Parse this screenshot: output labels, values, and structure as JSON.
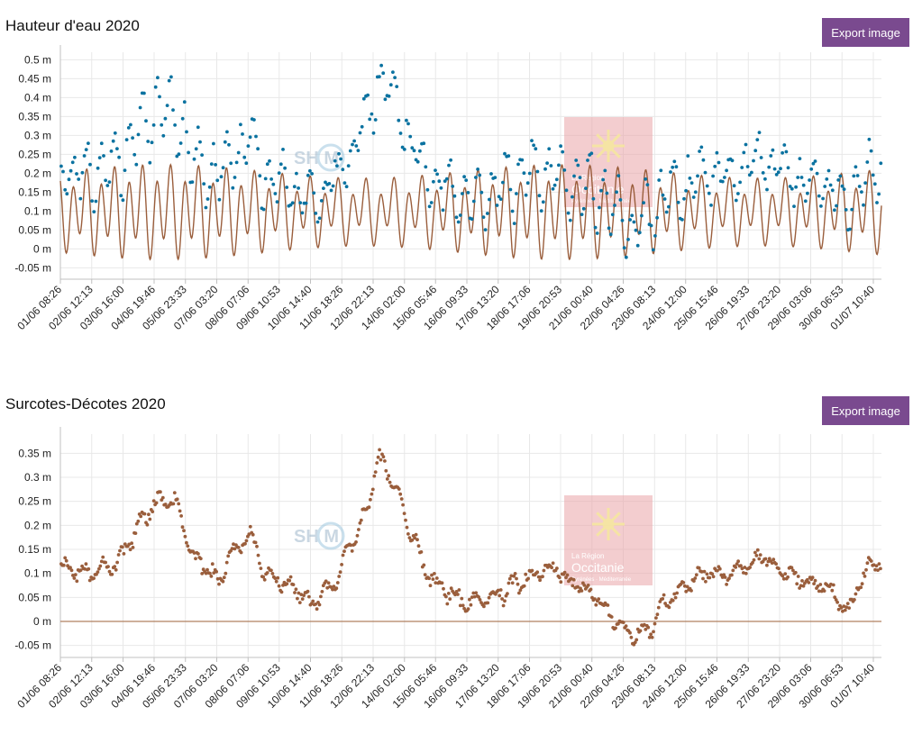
{
  "colors": {
    "button_bg": "#7a4a8f",
    "series_blue": "#0a72a0",
    "series_brown": "#9a5e3c",
    "grid": "#e8e8e8",
    "axis": "#c0c0c0",
    "zero_line": "#b08060",
    "watermark_box": "#e9a4a8",
    "watermark_icon": "#f6e7a0"
  },
  "export_label": "Export image",
  "watermarks": {
    "shom_text": "SH   M",
    "region_line1": "La Région",
    "region_line2": "Occitanie",
    "region_line3": "Pyrénées · Méditerranée"
  },
  "chart_data": [
    {
      "type": "scatter",
      "title": "Hauteur d'eau 2020",
      "yunit": "m",
      "ylim": [
        -0.08,
        0.52
      ],
      "yticks": [
        -0.05,
        0,
        0.05,
        0.1,
        0.15,
        0.2,
        0.25,
        0.3,
        0.35,
        0.4,
        0.45,
        0.5
      ],
      "ytick_labels": [
        "-0.05 m",
        "0 m",
        "0.05 m",
        "0.1 m",
        "0.15 m",
        "0.2 m",
        "0.25 m",
        "0.3 m",
        "0.35 m",
        "0.4 m",
        "0.45 m",
        "0.5 m"
      ],
      "x_range_days": [
        0,
        30.4
      ],
      "xticks": [
        0,
        1.16,
        2.32,
        3.47,
        4.63,
        5.79,
        6.95,
        8.1,
        9.26,
        10.42,
        11.58,
        12.74,
        13.89,
        15.05,
        16.21,
        17.37,
        18.52,
        19.68,
        20.84,
        22.0,
        23.15,
        24.31,
        25.47,
        26.63,
        27.78,
        28.94,
        30.1
      ],
      "xtick_labels": [
        "01/06 08:26",
        "02/06 12:13",
        "03/06 16:00",
        "04/06 19:46",
        "05/06 23:33",
        "07/06 03:20",
        "08/06 07:06",
        "09/06 10:53",
        "10/06 14:40",
        "11/06 18:26",
        "12/06 22:13",
        "14/06 02:00",
        "15/06 05:46",
        "16/06 09:33",
        "17/06 13:20",
        "18/06 17:06",
        "19/06 20:53",
        "21/06 00:40",
        "22/06 04:26",
        "23/06 08:13",
        "24/06 12:00",
        "25/06 15:46",
        "26/06 19:33",
        "27/06 23:20",
        "29/06 03:06",
        "30/06 06:53",
        "01/07 10:40"
      ],
      "grid": true,
      "series": [
        {
          "kind": "points",
          "color": "#0a72a0",
          "surge_anchors_x": [
            0,
            1,
            2,
            2.6,
            3.1,
            3.6,
            4.2,
            5,
            5.8,
            6.5,
            7,
            7.7,
            8.4,
            9.3,
            10,
            10.8,
            11.3,
            11.8,
            12.4,
            13,
            13.6,
            14.3,
            15,
            16,
            17,
            17.6,
            18.2,
            19,
            19.8,
            20.6,
            21.2,
            21.8,
            22.3,
            23,
            23.8,
            24.8,
            25.5,
            26,
            26.6,
            27.2,
            28,
            28.6,
            29.1,
            29.6,
            30,
            30.4
          ],
          "surge_anchors_y": [
            0.11,
            0.1,
            0.12,
            0.17,
            0.22,
            0.25,
            0.25,
            0.13,
            0.09,
            0.15,
            0.18,
            0.09,
            0.08,
            0.04,
            0.07,
            0.16,
            0.23,
            0.34,
            0.28,
            0.18,
            0.1,
            0.06,
            0.04,
            0.05,
            0.08,
            0.1,
            0.11,
            0.08,
            0.05,
            0.0,
            -0.03,
            -0.02,
            0.04,
            0.07,
            0.1,
            0.1,
            0.12,
            0.14,
            0.11,
            0.09,
            0.08,
            0.06,
            0.02,
            0.08,
            0.12,
            0.12
          ],
          "tide_mean": 0.1,
          "tide_amplitude": 0.1,
          "tide_period_days": 1.035,
          "spring_cycle_days": 14.76,
          "point_spacing_days": 0.042
        },
        {
          "kind": "line",
          "color": "#9a5e3c",
          "description_values": "astronomical tide, semi-diurnal oscillation between about -0.04 m and 0.27 m"
        }
      ]
    },
    {
      "type": "scatter",
      "title": "Surcotes-Décotes 2020",
      "yunit": "m",
      "ylim": [
        -0.075,
        0.39
      ],
      "yticks": [
        -0.05,
        0,
        0.05,
        0.1,
        0.15,
        0.2,
        0.25,
        0.3,
        0.35
      ],
      "ytick_labels": [
        "-0.05 m",
        "0 m",
        "0.05 m",
        "0.1 m",
        "0.15 m",
        "0.2 m",
        "0.25 m",
        "0.3 m",
        "0.35 m"
      ],
      "x_range_days": [
        0,
        30.4
      ],
      "xticks": [
        0,
        1.16,
        2.32,
        3.47,
        4.63,
        5.79,
        6.95,
        8.1,
        9.26,
        10.42,
        11.58,
        12.74,
        13.89,
        15.05,
        16.21,
        17.37,
        18.52,
        19.68,
        20.84,
        22.0,
        23.15,
        24.31,
        25.47,
        26.63,
        27.78,
        28.94,
        30.1
      ],
      "xtick_labels": [
        "01/06 08:26",
        "02/06 12:13",
        "03/06 16:00",
        "04/06 19:46",
        "05/06 23:33",
        "07/06 03:20",
        "08/06 07:06",
        "09/06 10:53",
        "10/06 14:40",
        "11/06 18:26",
        "12/06 22:13",
        "14/06 02:00",
        "15/06 05:46",
        "16/06 09:33",
        "17/06 13:20",
        "18/06 17:06",
        "19/06 20:53",
        "21/06 00:40",
        "22/06 04:26",
        "23/06 08:13",
        "24/06 12:00",
        "25/06 15:46",
        "26/06 19:33",
        "27/06 23:20",
        "29/06 03:06",
        "30/06 06:53",
        "01/07 10:40"
      ],
      "grid": true,
      "series": [
        {
          "kind": "points",
          "color": "#9a5e3c",
          "anchors_x": [
            0,
            1,
            2,
            2.6,
            3.1,
            3.6,
            4.2,
            5,
            5.8,
            6.5,
            7,
            7.7,
            8.4,
            9.3,
            10,
            10.8,
            11.3,
            11.8,
            12.4,
            13,
            13.6,
            14.3,
            15,
            16,
            17,
            17.6,
            18.2,
            19,
            19.8,
            20.6,
            21.2,
            21.8,
            22.3,
            23,
            23.8,
            24.8,
            25.5,
            26,
            26.6,
            27.2,
            28,
            28.6,
            29.1,
            29.6,
            30,
            30.4
          ],
          "anchors_y": [
            0.11,
            0.1,
            0.12,
            0.17,
            0.22,
            0.25,
            0.25,
            0.13,
            0.09,
            0.15,
            0.18,
            0.09,
            0.08,
            0.04,
            0.07,
            0.16,
            0.23,
            0.34,
            0.28,
            0.18,
            0.1,
            0.06,
            0.04,
            0.05,
            0.08,
            0.1,
            0.11,
            0.08,
            0.05,
            0.0,
            -0.03,
            -0.02,
            0.04,
            0.07,
            0.1,
            0.1,
            0.12,
            0.14,
            0.11,
            0.09,
            0.08,
            0.06,
            0.02,
            0.08,
            0.12,
            0.12
          ],
          "point_spacing_days": 0.042
        },
        {
          "kind": "reference_line",
          "color": "#b08060",
          "y": 0
        }
      ]
    }
  ]
}
